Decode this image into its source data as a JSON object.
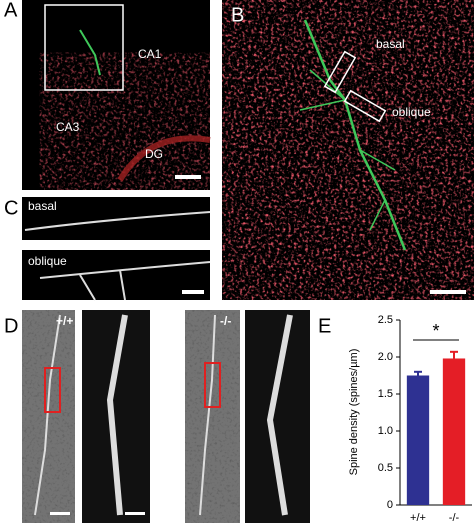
{
  "figure": {
    "panel_labels": [
      "A",
      "B",
      "C",
      "D",
      "E"
    ],
    "a_regions": [
      "CA1",
      "CA3",
      "DG"
    ],
    "b_boxes": [
      "basal",
      "oblique"
    ],
    "c_rows": [
      "basal",
      "oblique"
    ],
    "d_genotypes": [
      "+/+",
      "-/-"
    ]
  },
  "chart_data": {
    "type": "bar",
    "ylabel": "Spine density (spines/µm)",
    "categories": [
      "+/+",
      "-/-"
    ],
    "values": [
      1.75,
      1.98
    ],
    "errors": [
      0.05,
      0.09
    ],
    "colors": [
      "#2e3192",
      "#e41e26"
    ],
    "ylim": [
      0,
      2.5
    ],
    "yticks": [
      0,
      0.5,
      {
        "value": 1,
        "label": "1.0"
      },
      1.5,
      {
        "value": 2,
        "label": "2.0"
      },
      2.5
    ],
    "annotation": "*"
  }
}
